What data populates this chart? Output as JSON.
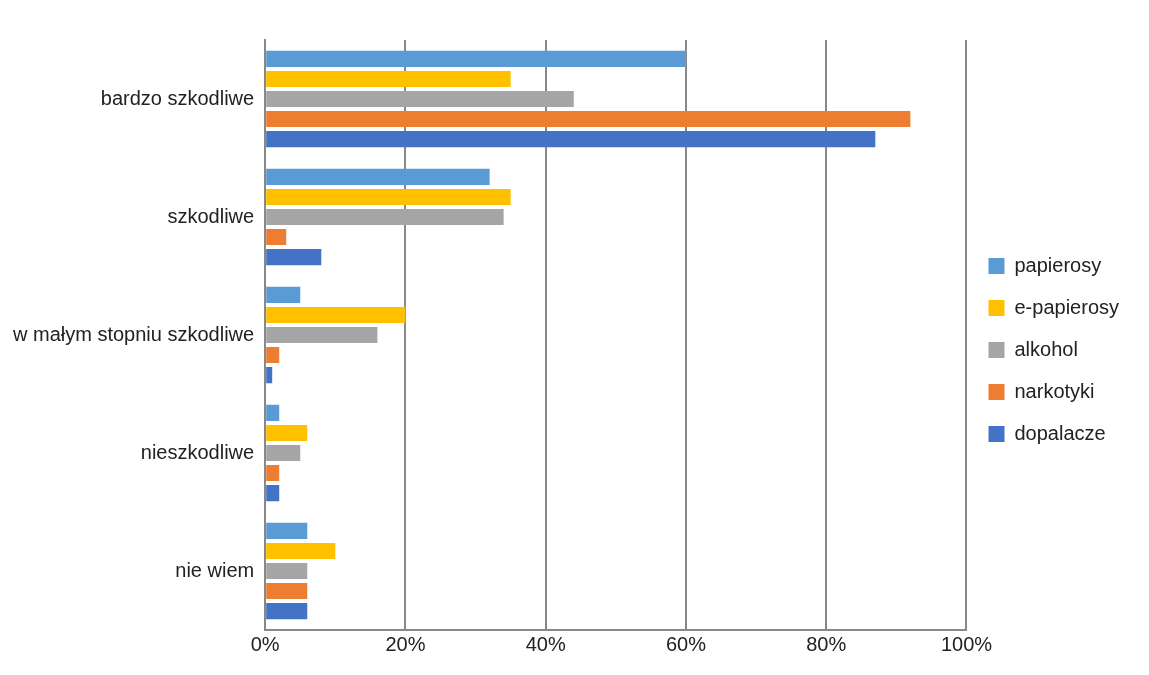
{
  "chart_data": {
    "type": "bar",
    "orientation": "horizontal",
    "categories": [
      "bardzo szkodliwe",
      "szkodliwe",
      "w małym stopniu szkodliwe",
      "nieszkodliwe",
      "nie wiem"
    ],
    "series": [
      {
        "name": "papierosy",
        "color": "#5b9bd5",
        "values": [
          60,
          32,
          5,
          2,
          6
        ]
      },
      {
        "name": "e-papierosy",
        "color": "#ffc000",
        "values": [
          35,
          35,
          20,
          6,
          10
        ]
      },
      {
        "name": "alkohol",
        "color": "#a5a5a5",
        "values": [
          44,
          34,
          16,
          5,
          6
        ]
      },
      {
        "name": "narkotyki",
        "color": "#ed7d31",
        "values": [
          92,
          3,
          2,
          2,
          6
        ]
      },
      {
        "name": "dopalacze",
        "color": "#4472c4",
        "values": [
          87,
          8,
          1,
          2,
          6
        ]
      }
    ],
    "xlim": [
      0,
      100
    ],
    "xticks": [
      {
        "value": 0,
        "label": "0%"
      },
      {
        "value": 20,
        "label": "20%"
      },
      {
        "value": 40,
        "label": "40%"
      },
      {
        "value": 60,
        "label": "60%"
      },
      {
        "value": 80,
        "label": "80%"
      },
      {
        "value": 100,
        "label": "100%"
      }
    ],
    "grid": "x",
    "legend": "right"
  }
}
